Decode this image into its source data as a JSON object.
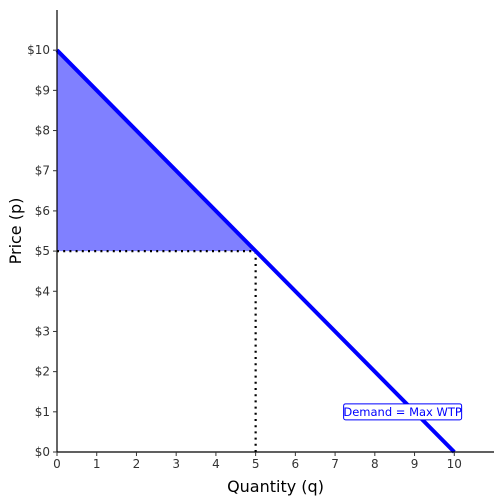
{
  "chart_data": {
    "type": "line",
    "xlabel": "Quantity (q)",
    "ylabel": "Price (p)",
    "xlim": [
      0,
      11
    ],
    "ylim": [
      0,
      11
    ],
    "x_ticks": [
      0,
      1,
      2,
      3,
      4,
      5,
      6,
      7,
      8,
      9,
      10
    ],
    "y_ticks": [
      0,
      1,
      2,
      3,
      4,
      5,
      6,
      7,
      8,
      9,
      10
    ],
    "x_tick_labels": [
      "0",
      "1",
      "2",
      "3",
      "4",
      "5",
      "6",
      "7",
      "8",
      "9",
      "10"
    ],
    "y_tick_labels": [
      "$0",
      "$1",
      "$2",
      "$3",
      "$4",
      "$5",
      "$6",
      "$7",
      "$8",
      "$9",
      "$10"
    ],
    "grid": false,
    "series": [
      {
        "name": "Demand = Max WTP",
        "color": "#0000ff",
        "x": [
          0,
          10
        ],
        "y": [
          10,
          0
        ]
      }
    ],
    "shaded_area": {
      "color": "#8080ff",
      "x": [
        0,
        5,
        0
      ],
      "y": [
        10,
        5,
        5
      ]
    },
    "reference_lines": [
      {
        "style": "dotted",
        "x": [
          0,
          5
        ],
        "y": [
          5,
          5
        ]
      },
      {
        "style": "dotted",
        "x": [
          5,
          5
        ],
        "y": [
          0,
          5
        ]
      }
    ],
    "annotation": {
      "text": "Demand = Max WTP",
      "x": 8.7,
      "y": 1,
      "text_color": "#0000ff",
      "border_color": "#0000ff"
    }
  }
}
